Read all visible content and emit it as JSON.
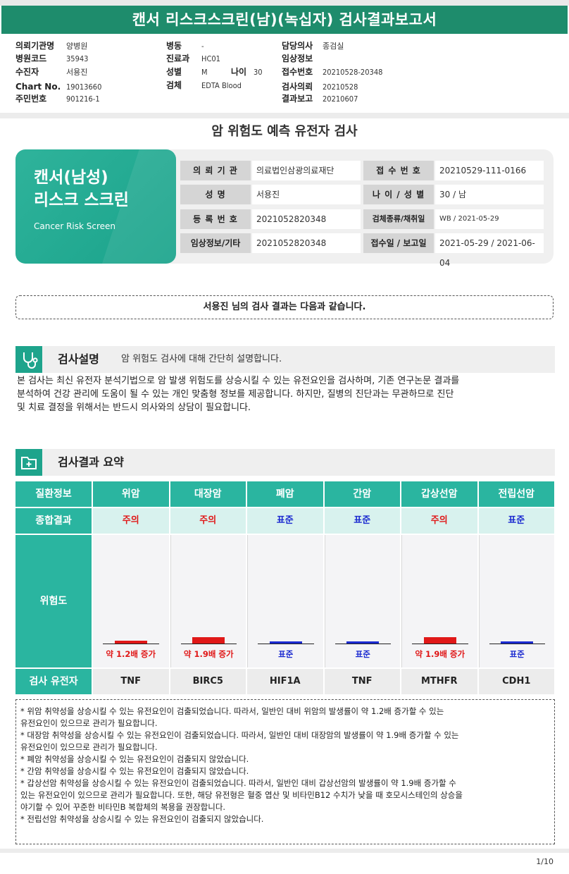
{
  "title": "캔서 리스크스크린(남)(녹십자) 검사결과보고서",
  "header": {
    "org_label": "의뢰기관명",
    "org_value": "양병원",
    "code_label": "병원코드",
    "code_value": "35943",
    "patient_label": "수진자",
    "patient_value": "서용진",
    "chart_label": "Chart No.",
    "chart_value": "19013660",
    "rrn_label": "주민번호",
    "rrn_value": "901216-1",
    "ward_label": "병동",
    "ward_value": "-",
    "dept_label": "진료과",
    "dept_value": "HC01",
    "sex_label": "성별",
    "sex_value": "M",
    "age_label": "나이",
    "age_value": "30",
    "specimen_label": "검체",
    "specimen_value": "EDTA Blood",
    "doctor_label": "담당의사",
    "doctor_value": "종검실",
    "clinical_label": "임상정보",
    "clinical_value": "",
    "receipt_label": "접수번호",
    "receipt_value": "20210528-20348",
    "request_label": "검사의뢰",
    "request_value": "20210528",
    "report_label": "결과보고",
    "report_value": "20210607"
  },
  "subtitle": "암 위험도 예측 유전자 검사",
  "card": {
    "title_line1": "캔서(남성)",
    "title_line2": "리스크 스크린",
    "english": "Cancer Risk Screen",
    "fields": [
      {
        "key": "의 뢰 기 관",
        "value": "의료법인삼광의료재단"
      },
      {
        "key": "접 수 번 호",
        "value": "20210529-111-0166"
      },
      {
        "key": "성          명",
        "value": "서용진"
      },
      {
        "key": "나 이 / 성 별",
        "value": "30 / 남"
      },
      {
        "key": "등 록 번 호",
        "value": "2021052820348"
      },
      {
        "key": "검체종류/채취일",
        "value": "WB / 2021-05-29"
      },
      {
        "key": "임상정보/기타",
        "value": "2021052820348"
      },
      {
        "key": "접수일 / 보고일",
        "value": "2021-05-29 / 2021-06-04"
      }
    ]
  },
  "banner": "서용진 님의 검사 결과는 다음과 같습니다.",
  "section1": {
    "title": "검사설명",
    "subtitle": "암 위험도 검사에 대해 간단히 설명합니다.",
    "icon": "stethoscope-icon",
    "body_lines": [
      "본 검사는 최신 유전자 분석기법으로 암 발생 위험도를 상승시킬 수 있는 유전요인을 검사하며, 기존 연구논문 결과를",
      "분석하여 건강 관리에 도움이 될 수 있는 개인 맞춤형 정보를 제공합니다. 하지만, 질병의 진단과는 무관하므로 진단",
      "및 치료 결정을 위해서는 반드시 의사와의 상담이 필요합니다."
    ]
  },
  "section2": {
    "title": "검사결과 요약",
    "icon": "medical-folder-icon"
  },
  "results": {
    "head_label": "질환정보",
    "summary_label": "종합결과",
    "risk_label": "위험도",
    "gene_label": "검사 유전자",
    "colors": {
      "caution": "#e01818",
      "normal": "#1b2ad0",
      "header": "#2ab5a0"
    },
    "columns": [
      {
        "disease": "위암",
        "summary": "주의",
        "status": "caution",
        "risk_text": "약 1.2배 증가",
        "risk_level": 1.2,
        "gene": "TNF"
      },
      {
        "disease": "대장암",
        "summary": "주의",
        "status": "caution",
        "risk_text": "약 1.9배 증가",
        "risk_level": 1.9,
        "gene": "BIRC5"
      },
      {
        "disease": "폐암",
        "summary": "표준",
        "status": "normal",
        "risk_text": "표준",
        "risk_level": 1.0,
        "gene": "HIF1A"
      },
      {
        "disease": "간암",
        "summary": "표준",
        "status": "normal",
        "risk_text": "표준",
        "risk_level": 1.0,
        "gene": "TNF"
      },
      {
        "disease": "갑상선암",
        "summary": "주의",
        "status": "caution",
        "risk_text": "약 1.9배 증가",
        "risk_level": 1.9,
        "gene": "MTHFR"
      },
      {
        "disease": "전립선암",
        "summary": "표준",
        "status": "normal",
        "risk_text": "표준",
        "risk_level": 1.0,
        "gene": "CDH1"
      }
    ]
  },
  "notes": [
    "* 위암 취약성을 상승시킬 수 있는 유전요인이 검출되었습니다. 따라서, 일반인 대비 위암의 발생률이 약 1.2배 증가할 수 있는",
    "유전요인이 있으므로 관리가 필요합니다.",
    "* 대장암 취약성을 상승시킬 수 있는 유전요인이 검출되었습니다. 따라서, 일반인 대비 대장암의 발생률이 약 1.9배 증가할 수 있는",
    "유전요인이 있으므로 관리가 필요합니다.",
    "* 폐암 취약성을 상승시킬 수 있는 유전요인이 검출되지 않았습니다.",
    "* 간암 취약성을 상승시킬 수 있는 유전요인이 검출되지 않았습니다.",
    "* 갑상선암 취약성을 상승시킬 수 있는 유전요인이 검출되었습니다. 따라서, 일반인 대비 갑상선암의 발생률이 약 1.9배 증가할 수",
    "있는 유전요인이 있으므로 관리가 필요합니다. 또한, 해당 유전형은 혈중 엽산 및 비타민B12 수치가 낮을 때 호모시스테인의 상승을",
    "야기할 수 있어 꾸준한 비타민B 복합체의 복용을 권장합니다.",
    "* 전립선암 취약성을 상승시킬 수 있는 유전요인이 검출되지 않았습니다."
  ],
  "page_number": "1/10"
}
